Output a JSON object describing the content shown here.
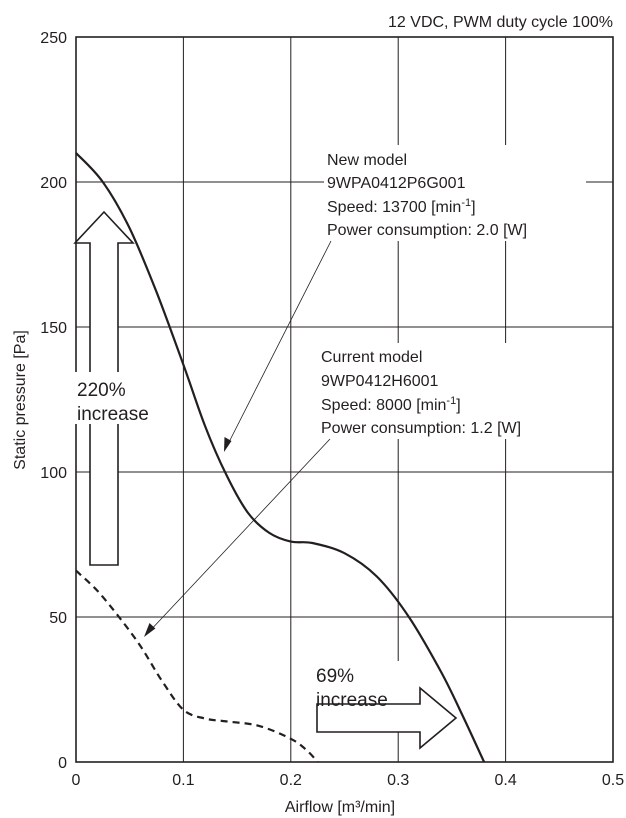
{
  "chart_data": {
    "type": "line",
    "subtitle": "12 VDC, PWM duty cycle 100%",
    "xlabel": "Airflow [m³/min]",
    "ylabel": "Static pressure [Pa]",
    "xlim": [
      0,
      0.5
    ],
    "ylim": [
      0,
      250
    ],
    "x_ticks": [
      "0",
      "0.1",
      "0.2",
      "0.3",
      "0.4",
      "0.5"
    ],
    "y_ticks": [
      "0",
      "50",
      "100",
      "150",
      "200",
      "250"
    ],
    "grid": true,
    "series": [
      {
        "name": "New model",
        "style": "solid",
        "x": [
          0,
          0.025,
          0.05,
          0.075,
          0.1,
          0.12,
          0.14,
          0.16,
          0.18,
          0.2,
          0.22,
          0.25,
          0.28,
          0.31,
          0.34,
          0.36,
          0.38
        ],
        "y": [
          210,
          200,
          184,
          162,
          137,
          116,
          99,
          86,
          79,
          76,
          75.5,
          72,
          64,
          50,
          31,
          16,
          0
        ]
      },
      {
        "name": "Current model",
        "style": "dashed",
        "x": [
          0,
          0.02,
          0.04,
          0.06,
          0.08,
          0.1,
          0.12,
          0.14,
          0.17,
          0.2,
          0.215,
          0.225
        ],
        "y": [
          66,
          59,
          50,
          40,
          28,
          18,
          15,
          14,
          12.5,
          8,
          4,
          0
        ]
      }
    ],
    "annotations": [
      {
        "id": "new",
        "lines": [
          "New model",
          "9WPA0412P6G001",
          "Speed: 13700 [min",
          "Power consumption: 2.0 [W]"
        ],
        "speed_sup": "-1",
        "speed_end": "]"
      },
      {
        "id": "current",
        "lines": [
          "Current model",
          "9WP0412H6001",
          "Speed: 8000 [min",
          "Power consumption: 1.2 [W]"
        ],
        "speed_sup": "-1",
        "speed_end": "]"
      }
    ],
    "pressure_callout": [
      "220%",
      "increase"
    ],
    "airflow_callout": [
      "69%",
      "increase"
    ]
  }
}
